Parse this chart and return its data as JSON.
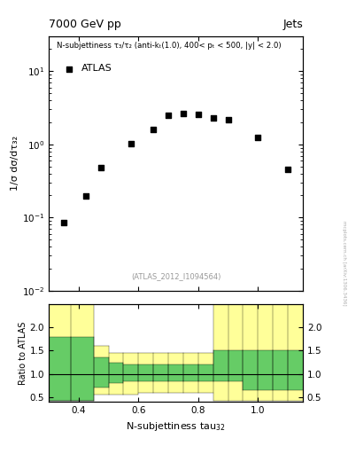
{
  "title_left": "7000 GeV pp",
  "title_right": "Jets",
  "annotation": "N-subjettiness τ₃/τ₂ (anti-kₜ(1.0), 400< pₜ < 500, |y| < 2.0)",
  "legend_label": "ATLAS",
  "atlas_label_text": "(ATLAS_2012_I1094564)",
  "ylabel_main": "1/σ dσ/dτ₃₂",
  "ylabel_ratio": "Ratio to ATLAS",
  "xlabel": "N-subjettiness tau",
  "watermark": "mcplots.cern.ch [arXiv:1306.3436]",
  "data_x": [
    0.35,
    0.425,
    0.475,
    0.575,
    0.65,
    0.7,
    0.75,
    0.8,
    0.85,
    0.9,
    1.0,
    1.1
  ],
  "data_y": [
    0.085,
    0.195,
    0.48,
    1.02,
    1.58,
    2.5,
    2.65,
    2.6,
    2.3,
    2.15,
    1.25,
    0.45
  ],
  "xlim": [
    0.3,
    1.15
  ],
  "ylim_main": [
    0.01,
    30
  ],
  "ylim_ratio": [
    0.4,
    2.5
  ],
  "ratio_yticks": [
    0.5,
    1.0,
    1.5,
    2.0
  ],
  "bin_edges": [
    0.3,
    0.375,
    0.45,
    0.5,
    0.55,
    0.6,
    0.65,
    0.7,
    0.75,
    0.8,
    0.85,
    0.9,
    0.95,
    1.0,
    1.05,
    1.1,
    1.15
  ],
  "green_lo": [
    0.42,
    0.42,
    0.7,
    0.8,
    0.85,
    0.85,
    0.85,
    0.85,
    0.85,
    0.85,
    0.85,
    0.85,
    0.65,
    0.65,
    0.65,
    0.65
  ],
  "green_hi": [
    1.8,
    1.8,
    1.35,
    1.25,
    1.2,
    1.2,
    1.2,
    1.2,
    1.2,
    1.2,
    1.5,
    1.5,
    1.5,
    1.5,
    1.5,
    1.5
  ],
  "yellow_lo": [
    0.42,
    0.42,
    0.55,
    0.55,
    0.55,
    0.6,
    0.6,
    0.6,
    0.6,
    0.6,
    0.42,
    0.42,
    0.42,
    0.42,
    0.42,
    0.42
  ],
  "yellow_hi": [
    2.5,
    2.5,
    1.6,
    1.45,
    1.45,
    1.45,
    1.45,
    1.45,
    1.45,
    1.45,
    2.5,
    2.5,
    2.5,
    2.5,
    2.5,
    2.5
  ],
  "marker_color": "#000000",
  "green_color": "#66cc66",
  "yellow_color": "#ffff99",
  "bg_color": "#ffffff"
}
